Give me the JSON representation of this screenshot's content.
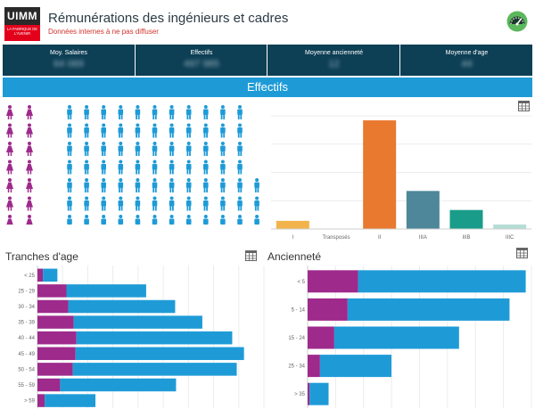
{
  "header": {
    "logo_top": "UIMM",
    "logo_sub": "LA FABRIQUE DE L'AVENIR",
    "title": "Rémunérations des ingénieurs et cadres",
    "subtitle": "Données internes à ne pas diffuser"
  },
  "kpis": [
    {
      "label": "Moy. Salaires",
      "value": "64 069"
    },
    {
      "label": "Effectifs",
      "value": "497 985"
    },
    {
      "label": "Moyenne ancienneté",
      "value": "12"
    },
    {
      "label": "Moyenne d'age",
      "value": "44"
    }
  ],
  "section_title": "Effectifs",
  "people_grid": {
    "female_color": "#9e2a8c",
    "male_color": "#1e9bd7",
    "rows": [
      {
        "female": 2,
        "male": 11
      },
      {
        "female": 2,
        "male": 11
      },
      {
        "female": 2,
        "male": 11
      },
      {
        "female": 2,
        "male": 11
      },
      {
        "female": 2,
        "male": 12
      },
      {
        "female": 2,
        "male": 12
      },
      {
        "female": 2,
        "male": 12
      }
    ]
  },
  "tranches_title": "Tranches d'age",
  "anciennete_title": "Ancienneté",
  "icons": {
    "table": "table-grid-icon",
    "gauge": "speedometer-icon"
  },
  "chart_data": [
    {
      "type": "bar",
      "categories": [
        "I",
        "Transposés",
        "II",
        "IIIA",
        "IIIB",
        "IIIC"
      ],
      "values": [
        9,
        0,
        120,
        42,
        21,
        5
      ],
      "colors": [
        "#f2b34c",
        "#cfcfcf",
        "#e8792e",
        "#4d8799",
        "#1a9c8a",
        "#b6ddd5"
      ],
      "ylim": [
        0,
        125
      ],
      "grid": true
    },
    {
      "type": "bar",
      "orientation": "horizontal",
      "stacked": true,
      "categories": [
        "< 25",
        "25 - 29",
        "30 - 34",
        "35 - 39",
        "40 - 44",
        "45 - 49",
        "50 - 54",
        "55 - 59",
        "> 59"
      ],
      "series": [
        {
          "color": "#9e2a8c",
          "values": [
            6,
            32,
            34,
            40,
            43,
            42,
            39,
            25,
            8
          ]
        },
        {
          "color": "#1e9bd7",
          "values": [
            16,
            88,
            118,
            142,
            172,
            186,
            181,
            128,
            56
          ]
        }
      ],
      "xlim": [
        0,
        250
      ],
      "grid": true
    },
    {
      "type": "bar",
      "orientation": "horizontal",
      "stacked": true,
      "categories": [
        "< 5",
        "5 - 14",
        "15 - 24",
        "25 - 34",
        "> 35"
      ],
      "series": [
        {
          "color": "#9e2a8c",
          "values": [
            53,
            42,
            28,
            13,
            2
          ]
        },
        {
          "color": "#1e9bd7",
          "values": [
            176,
            170,
            131,
            75,
            20
          ]
        }
      ],
      "xlim": [
        0,
        235
      ],
      "grid": true
    }
  ]
}
